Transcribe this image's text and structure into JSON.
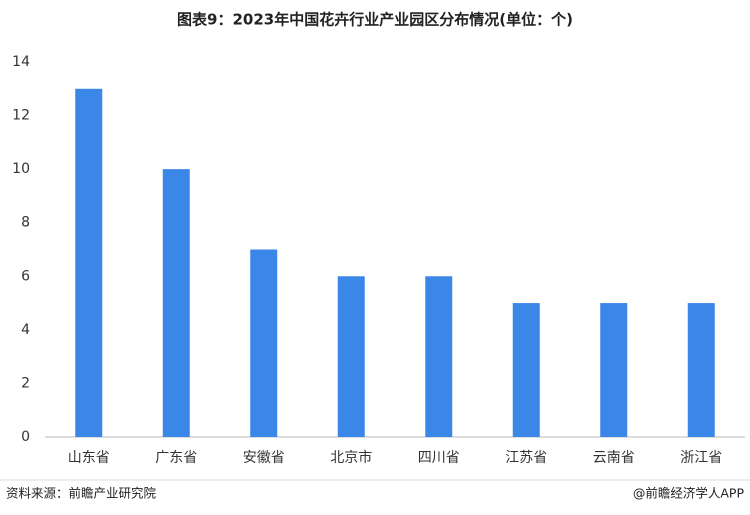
{
  "chart_data": {
    "type": "bar",
    "title": "图表9：2023年中国花卉行业产业园区分布情况(单位：个)",
    "categories": [
      "山东省",
      "广东省",
      "安徽省",
      "北京市",
      "四川省",
      "江苏省",
      "云南省",
      "浙江省"
    ],
    "values": [
      13,
      10,
      7,
      6,
      6,
      5,
      5,
      5
    ],
    "color": "#3a87e8",
    "ylim": [
      0,
      14
    ],
    "yticks": [
      0,
      2,
      4,
      6,
      8,
      10,
      12,
      14
    ],
    "grid": false,
    "source": "资料来源：前瞻产业研究院",
    "credit": "@前瞻经济学人APP"
  }
}
